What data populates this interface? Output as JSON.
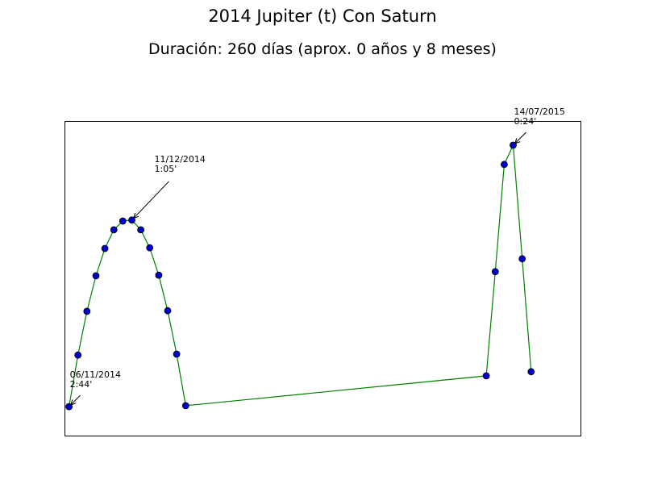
{
  "chart_data": {
    "type": "line",
    "title": "2014 Jupiter (t) Con Saturn",
    "subtitle": "Duración: 260 días (aprox. 0 años y 8 meses)",
    "xlabel": "",
    "ylabel": "",
    "grid": false,
    "legend": "none",
    "x_unit": "day",
    "xlim": [
      -0.5,
      57
    ],
    "ylim": [
      0,
      100
    ],
    "series": [
      {
        "color": "#008000",
        "marker_color": "#0000cc",
        "points": [
          {
            "x": 0,
            "y": 9.2
          },
          {
            "x": 1,
            "y": 25.6
          },
          {
            "x": 2,
            "y": 39.5
          },
          {
            "x": 3,
            "y": 50.8
          },
          {
            "x": 4,
            "y": 59.5
          },
          {
            "x": 5,
            "y": 65.4
          },
          {
            "x": 6,
            "y": 68.2
          },
          {
            "x": 7,
            "y": 68.5
          },
          {
            "x": 8,
            "y": 65.4
          },
          {
            "x": 9,
            "y": 59.7
          },
          {
            "x": 10,
            "y": 51.0
          },
          {
            "x": 11,
            "y": 39.7
          },
          {
            "x": 12,
            "y": 25.9
          },
          {
            "x": 13,
            "y": 9.5
          },
          {
            "x": 46.5,
            "y": 19.0
          },
          {
            "x": 47.5,
            "y": 52.1
          },
          {
            "x": 48.5,
            "y": 86.2
          },
          {
            "x": 49.5,
            "y": 92.3
          },
          {
            "x": 50.5,
            "y": 56.2
          },
          {
            "x": 51.5,
            "y": 20.3
          }
        ]
      }
    ],
    "annotations": [
      {
        "date": "06/11/2014",
        "value": "2:44'",
        "point_index": 0
      },
      {
        "date": "11/12/2014",
        "value": "1:05'",
        "point_index": 7
      },
      {
        "date": "14/07/2015",
        "value": "0:24'",
        "point_index": 17
      }
    ]
  }
}
